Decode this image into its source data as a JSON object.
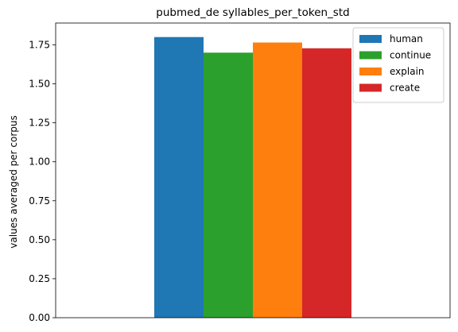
{
  "chart_data": {
    "type": "bar",
    "title": "pubmed_de syllables_per_token_std",
    "xlabel": "",
    "ylabel": "values averaged per corpus",
    "categories": [
      ""
    ],
    "ylim": [
      0,
      1.89
    ],
    "yticks": [
      "0.00",
      "0.25",
      "0.50",
      "0.75",
      "1.00",
      "1.25",
      "1.50",
      "1.75"
    ],
    "series": [
      {
        "name": "human",
        "values": [
          1.8
        ],
        "color": "#1f77b4"
      },
      {
        "name": "continue",
        "values": [
          1.7
        ],
        "color": "#2ca02c"
      },
      {
        "name": "explain",
        "values": [
          1.765
        ],
        "color": "#ff7f0e"
      },
      {
        "name": "create",
        "values": [
          1.728
        ],
        "color": "#d62728"
      }
    ],
    "grid": false,
    "legend": "top-right"
  }
}
